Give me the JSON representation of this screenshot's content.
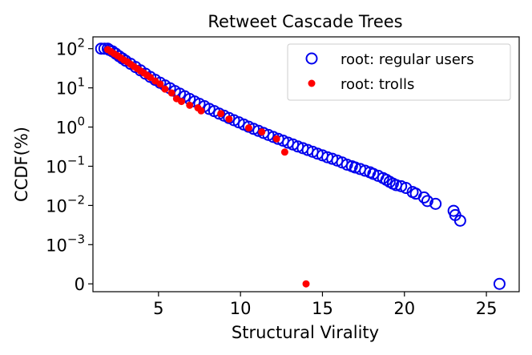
{
  "chart_data": {
    "type": "scatter",
    "title": "Retweet Cascade Trees",
    "xlabel": "Structural Virality",
    "ylabel": "CCDF(%)",
    "xlim": [
      1,
      27
    ],
    "yscale": "symlog",
    "ylim": [
      -0.0002,
      200
    ],
    "x_ticks": [
      5,
      10,
      15,
      20,
      25
    ],
    "y_ticks": [
      {
        "value": 100,
        "base": "10",
        "exp": "2"
      },
      {
        "value": 10,
        "base": "10",
        "exp": "1"
      },
      {
        "value": 1,
        "base": "10",
        "exp": "0"
      },
      {
        "value": 0.1,
        "base": "10",
        "exp": "−1"
      },
      {
        "value": 0.01,
        "base": "10",
        "exp": "−2"
      },
      {
        "value": 0.001,
        "base": "10",
        "exp": "−3"
      },
      {
        "value": 0,
        "base": "0",
        "exp": ""
      }
    ],
    "legend": "top-right",
    "series": [
      {
        "name": "root: regular users",
        "marker": "open-circle",
        "color": "#0000ee",
        "points": [
          [
            1.5,
            100
          ],
          [
            1.7,
            100
          ],
          [
            1.9,
            100
          ],
          [
            2.0,
            93
          ],
          [
            2.2,
            85
          ],
          [
            2.4,
            74
          ],
          [
            2.6,
            64
          ],
          [
            2.8,
            56
          ],
          [
            3.0,
            49
          ],
          [
            3.3,
            41
          ],
          [
            3.6,
            34
          ],
          [
            3.9,
            28
          ],
          [
            4.2,
            23
          ],
          [
            4.5,
            19
          ],
          [
            4.8,
            16
          ],
          [
            5.1,
            13.5
          ],
          [
            5.4,
            11.5
          ],
          [
            5.7,
            9.8
          ],
          [
            6.0,
            8.3
          ],
          [
            6.3,
            7.1
          ],
          [
            6.6,
            6.1
          ],
          [
            6.9,
            5.2
          ],
          [
            7.2,
            4.5
          ],
          [
            7.5,
            3.9
          ],
          [
            7.8,
            3.4
          ],
          [
            8.1,
            2.9
          ],
          [
            8.4,
            2.55
          ],
          [
            8.7,
            2.2
          ],
          [
            9.0,
            1.95
          ],
          [
            9.3,
            1.7
          ],
          [
            9.6,
            1.5
          ],
          [
            9.9,
            1.32
          ],
          [
            10.2,
            1.16
          ],
          [
            10.5,
            1.02
          ],
          [
            10.8,
            0.9
          ],
          [
            11.1,
            0.8
          ],
          [
            11.4,
            0.71
          ],
          [
            11.7,
            0.63
          ],
          [
            12.0,
            0.56
          ],
          [
            12.3,
            0.5
          ],
          [
            12.6,
            0.45
          ],
          [
            12.9,
            0.4
          ],
          [
            13.2,
            0.36
          ],
          [
            13.5,
            0.32
          ],
          [
            13.8,
            0.29
          ],
          [
            14.1,
            0.26
          ],
          [
            14.4,
            0.235
          ],
          [
            14.7,
            0.21
          ],
          [
            15.0,
            0.19
          ],
          [
            15.3,
            0.17
          ],
          [
            15.6,
            0.155
          ],
          [
            15.9,
            0.14
          ],
          [
            16.2,
            0.125
          ],
          [
            16.5,
            0.11
          ],
          [
            16.8,
            0.1
          ],
          [
            17.0,
            0.093
          ],
          [
            17.3,
            0.085
          ],
          [
            17.6,
            0.077
          ],
          [
            17.9,
            0.07
          ],
          [
            18.1,
            0.064
          ],
          [
            18.4,
            0.057
          ],
          [
            18.7,
            0.05
          ],
          [
            18.9,
            0.045
          ],
          [
            19.1,
            0.04
          ],
          [
            19.3,
            0.036
          ],
          [
            19.5,
            0.033
          ],
          [
            19.8,
            0.031
          ],
          [
            20.1,
            0.028
          ],
          [
            20.5,
            0.022
          ],
          [
            20.7,
            0.02
          ],
          [
            21.2,
            0.016
          ],
          [
            21.4,
            0.013
          ],
          [
            21.9,
            0.011
          ],
          [
            23.0,
            0.0073
          ],
          [
            23.1,
            0.0057
          ],
          [
            23.4,
            0.0041
          ],
          [
            25.8,
            0.0
          ]
        ]
      },
      {
        "name": "root: trolls",
        "marker": "filled-circle",
        "color": "#ff0000",
        "points": [
          [
            1.9,
            95
          ],
          [
            2.1,
            84
          ],
          [
            2.3,
            74
          ],
          [
            2.5,
            66
          ],
          [
            2.7,
            58
          ],
          [
            2.9,
            51
          ],
          [
            3.1,
            46
          ],
          [
            3.3,
            40
          ],
          [
            3.5,
            35
          ],
          [
            3.7,
            31
          ],
          [
            3.9,
            27
          ],
          [
            4.1,
            24
          ],
          [
            4.3,
            21
          ],
          [
            4.5,
            18.5
          ],
          [
            4.8,
            15
          ],
          [
            5.1,
            12.5
          ],
          [
            5.4,
            9.3
          ],
          [
            5.8,
            7.4
          ],
          [
            6.1,
            5.3
          ],
          [
            6.4,
            4.5
          ],
          [
            6.9,
            3.6
          ],
          [
            7.4,
            3.1
          ],
          [
            7.6,
            2.6
          ],
          [
            8.8,
            2.2
          ],
          [
            9.3,
            1.6
          ],
          [
            10.5,
            0.95
          ],
          [
            11.3,
            0.75
          ],
          [
            12.2,
            0.5
          ],
          [
            12.7,
            0.23
          ],
          [
            14.0,
            0.0
          ]
        ]
      }
    ]
  }
}
